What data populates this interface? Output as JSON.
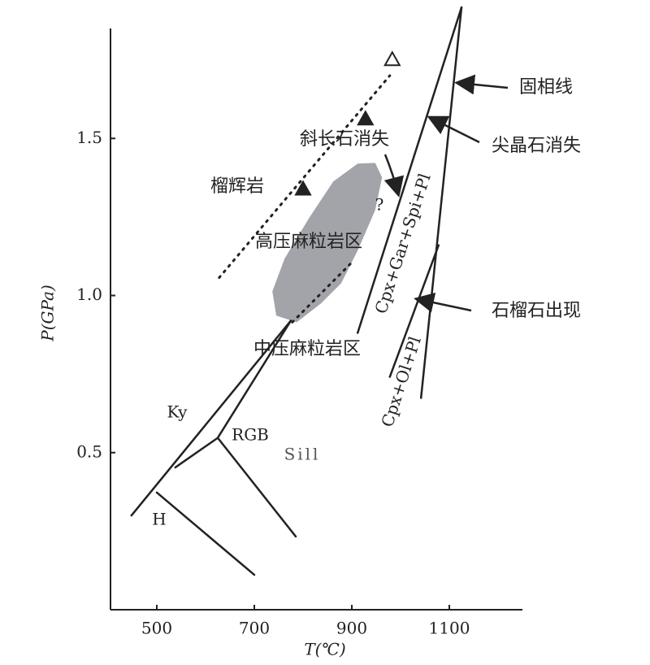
{
  "chart_data": {
    "type": "pt-diagram",
    "x_label": "T(℃)",
    "y_label": "P(GPa)",
    "xlim": [
      405,
      1250
    ],
    "ylim": [
      0,
      1.85
    ],
    "xticks": [
      500,
      700,
      900,
      1100
    ],
    "yticks": [
      0.5,
      {
        "value": 1,
        "label": "1.0"
      },
      1.5
    ],
    "color": "#222222",
    "region_color": "#a3a4aa",
    "lines": [
      {
        "x": [
          448,
          775
        ],
        "y": [
          0.3,
          0.92
        ],
        "style": "solid"
      },
      {
        "x": [
          625,
          775
        ],
        "y": [
          0.547,
          0.92
        ],
        "style": "solid"
      },
      {
        "x": [
          538,
          625
        ],
        "y": [
          0.453,
          0.547
        ],
        "style": "solid"
      },
      {
        "x": [
          625,
          785
        ],
        "y": [
          0.547,
          0.233
        ],
        "style": "solid"
      },
      {
        "x": [
          500,
          700
        ],
        "y": [
          0.373,
          0.111
        ],
        "style": "solid"
      },
      {
        "x": [
          912,
          1125
        ],
        "y": [
          0.881,
          1.917
        ],
        "style": "solid"
      },
      {
        "x": [
          1042,
          1125
        ],
        "y": [
          0.674,
          1.917
        ],
        "style": "solid"
      },
      {
        "x": [
          978,
          1078
        ],
        "y": [
          0.741,
          1.16
        ],
        "style": "solid"
      },
      {
        "x": [
          628,
          978
        ],
        "y": [
          1.057,
          1.7
        ],
        "style": "dotted"
      },
      {
        "x": [
          778,
          903
        ],
        "y": [
          0.915,
          1.11
        ],
        "style": "dotted"
      }
    ],
    "region": {
      "x": [
        745,
        737,
        762,
        812,
        862,
        912,
        948,
        962,
        948,
        912,
        878,
        837,
        787
      ],
      "y": [
        0.936,
        1.013,
        1.117,
        1.246,
        1.363,
        1.42,
        1.422,
        1.376,
        1.272,
        1.143,
        1.039,
        0.975,
        0.915
      ]
    },
    "triangles": [
      {
        "x": 800,
        "y": 1.339,
        "filled": true
      },
      {
        "x": 928,
        "y": 1.562,
        "filled": true
      },
      {
        "x": 983,
        "y": 1.751,
        "filled": false
      }
    ],
    "annotations": [
      "斜长石消失",
      "尖晶石消失",
      "固相线",
      "榴辉岩",
      "高压麻粒岩区",
      "中压麻粒岩区",
      "石榴石出现",
      "Ky",
      "RGB",
      "Sill",
      "H",
      "?",
      "Cpx+Gar+Spi+Pl",
      "Cpx+Ol+Pl"
    ]
  }
}
